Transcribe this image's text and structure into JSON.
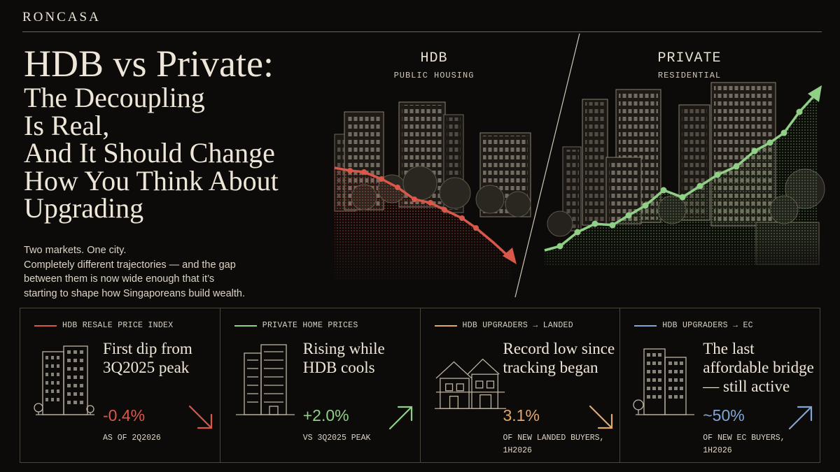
{
  "brand": "RONCASA",
  "title": {
    "line1": "HDB vs Private:",
    "line2": "The Decoupling",
    "line3": "Is Real,",
    "line4": "And It Should Change",
    "line5": "How You Think About",
    "line6": "Upgrading"
  },
  "subtitle": {
    "line1": "Two markets. One city.",
    "line2": "Completely different trajectories — and the gap",
    "line3": "between them is now wide enough that it’s",
    "line4": "starting to shape how Singaporeans build wealth."
  },
  "illustration": {
    "hdb_label": "HDB",
    "hdb_sublabel": "PUBLIC HOUSING",
    "private_label": "PRIVATE",
    "private_sublabel": "RESIDENTIAL"
  },
  "colors": {
    "hdb": "#d9584a",
    "private": "#8fcf86",
    "landed": "#e0a86a",
    "ec": "#7fa6d6",
    "text": "#ece4d6"
  },
  "cards": [
    {
      "label": "HDB RESALE PRICE INDEX",
      "headline": "First dip from 3Q2025 peak",
      "value": "-0.4%",
      "note": "AS OF 2Q2026",
      "color": "#d9584a",
      "icon": "hdb-block-icon",
      "trend": "down"
    },
    {
      "label": "PRIVATE HOME PRICES",
      "headline": "Rising while HDB cools",
      "value": "+2.0%",
      "note": "VS 3Q2025 PEAK",
      "color": "#8fcf86",
      "icon": "condo-tower-icon",
      "trend": "up"
    },
    {
      "label": "HDB UPGRADERS → LANDED",
      "headline": "Record low since tracking began",
      "value": "3.1%",
      "note": "OF NEW LANDED BUYERS, 1H2026",
      "color": "#e0a86a",
      "icon": "landed-house-icon",
      "trend": "down"
    },
    {
      "label": "HDB UPGRADERS → EC",
      "headline": "The last affordable bridge — still active",
      "value": "~50%",
      "note": "OF NEW EC BUYERS, 1H2026",
      "color": "#7fa6d6",
      "icon": "ec-block-icon",
      "trend": "up"
    }
  ]
}
